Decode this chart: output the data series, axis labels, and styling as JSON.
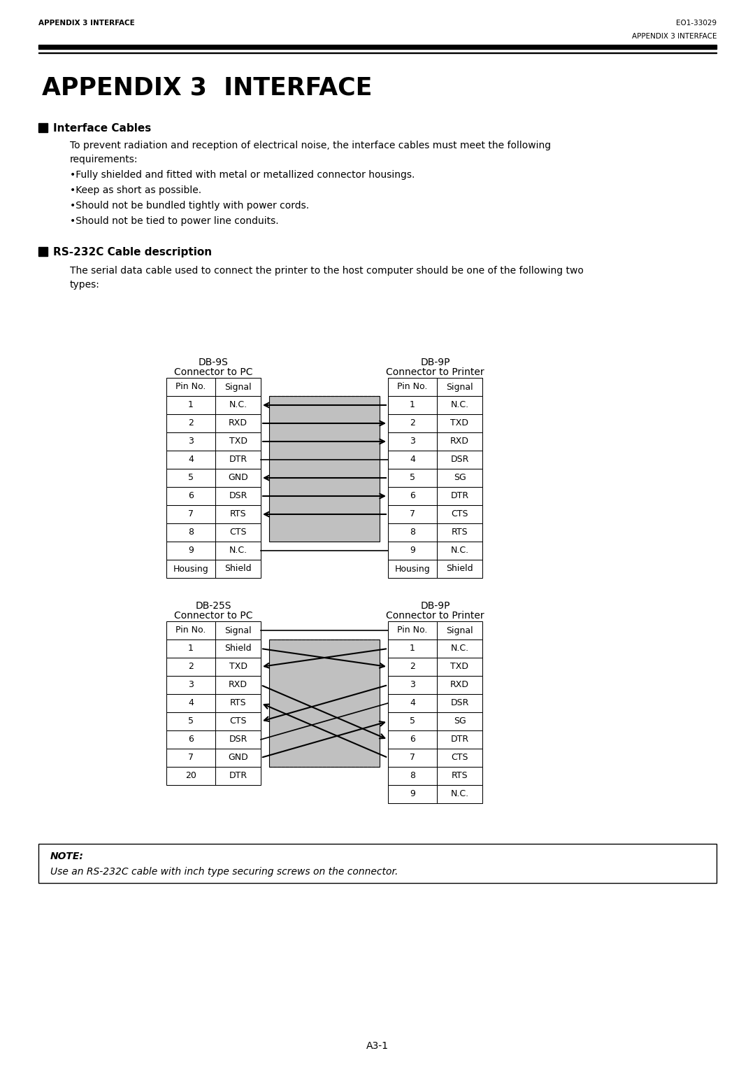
{
  "page_bg": "#ffffff",
  "text_color": "#000000",
  "header_left": "APPENDIX 3 INTERFACE",
  "header_right": "EO1-33029",
  "header_right2": "APPENDIX 3 INTERFACE",
  "footer": "A3-1",
  "main_title": "APPENDIX 3  INTERFACE",
  "sec1_title": "Interface Cables",
  "sec1_body_line1": "To prevent radiation and reception of electrical noise, the interface cables must meet the following",
  "sec1_body_line2": "requirements:",
  "sec1_bullets": [
    "Fully shielded and fitted with metal or metallized connector housings.",
    "Keep as short as possible.",
    "Should not be bundled tightly with power cords.",
    "Should not be tied to power line conduits."
  ],
  "sec2_title": "RS-232C Cable description",
  "sec2_body_line1": "The serial data cable used to connect the printer to the host computer should be one of the following two",
  "sec2_body_line2": "types:",
  "t1_left_title": "DB-9S",
  "t1_left_sub": "Connector to PC",
  "t1_right_title": "DB-9P",
  "t1_right_sub": "Connector to Printer",
  "t1_left_rows": [
    [
      "Pin No.",
      "Signal"
    ],
    [
      "1",
      "N.C."
    ],
    [
      "2",
      "RXD"
    ],
    [
      "3",
      "TXD"
    ],
    [
      "4",
      "DTR"
    ],
    [
      "5",
      "GND"
    ],
    [
      "6",
      "DSR"
    ],
    [
      "7",
      "RTS"
    ],
    [
      "8",
      "CTS"
    ],
    [
      "9",
      "N.C."
    ],
    [
      "Housing",
      "Shield"
    ]
  ],
  "t1_right_rows": [
    [
      "Pin No.",
      "Signal"
    ],
    [
      "1",
      "N.C."
    ],
    [
      "2",
      "TXD"
    ],
    [
      "3",
      "RXD"
    ],
    [
      "4",
      "DSR"
    ],
    [
      "5",
      "SG"
    ],
    [
      "6",
      "DTR"
    ],
    [
      "7",
      "CTS"
    ],
    [
      "8",
      "RTS"
    ],
    [
      "9",
      "N.C."
    ],
    [
      "Housing",
      "Shield"
    ]
  ],
  "t1_connections": [
    [
      2,
      2,
      "left"
    ],
    [
      3,
      3,
      "right"
    ],
    [
      4,
      4,
      "right"
    ],
    [
      5,
      5,
      "line"
    ],
    [
      6,
      6,
      "left"
    ],
    [
      7,
      7,
      "right"
    ],
    [
      8,
      8,
      "left"
    ],
    [
      10,
      10,
      "line"
    ]
  ],
  "t2_left_title": "DB-25S",
  "t2_left_sub": "Connector to PC",
  "t2_right_title": "DB-9P",
  "t2_right_sub": "Connector to Printer",
  "t2_left_rows": [
    [
      "Pin No.",
      "Signal"
    ],
    [
      "1",
      "Shield"
    ],
    [
      "2",
      "TXD"
    ],
    [
      "3",
      "RXD"
    ],
    [
      "4",
      "RTS"
    ],
    [
      "5",
      "CTS"
    ],
    [
      "6",
      "DSR"
    ],
    [
      "7",
      "GND"
    ],
    [
      "20",
      "DTR"
    ]
  ],
  "t2_right_rows": [
    [
      "Pin No.",
      "Signal"
    ],
    [
      "1",
      "N.C."
    ],
    [
      "2",
      "TXD"
    ],
    [
      "3",
      "RXD"
    ],
    [
      "4",
      "DSR"
    ],
    [
      "5",
      "SG"
    ],
    [
      "6",
      "DTR"
    ],
    [
      "7",
      "CTS"
    ],
    [
      "8",
      "RTS"
    ],
    [
      "9",
      "N.C."
    ]
  ],
  "t2_connections": [
    [
      1,
      1,
      "line"
    ],
    [
      2,
      3,
      "right"
    ],
    [
      3,
      2,
      "left"
    ],
    [
      4,
      7,
      "right"
    ],
    [
      5,
      8,
      "left"
    ],
    [
      6,
      4,
      "left"
    ],
    [
      7,
      5,
      "line"
    ],
    [
      8,
      6,
      "right"
    ]
  ],
  "note_title": "NOTE:",
  "note_body": "Use an RS-232C cable with inch type securing screws on the connector.",
  "cable_fill": "#c0c0c0"
}
